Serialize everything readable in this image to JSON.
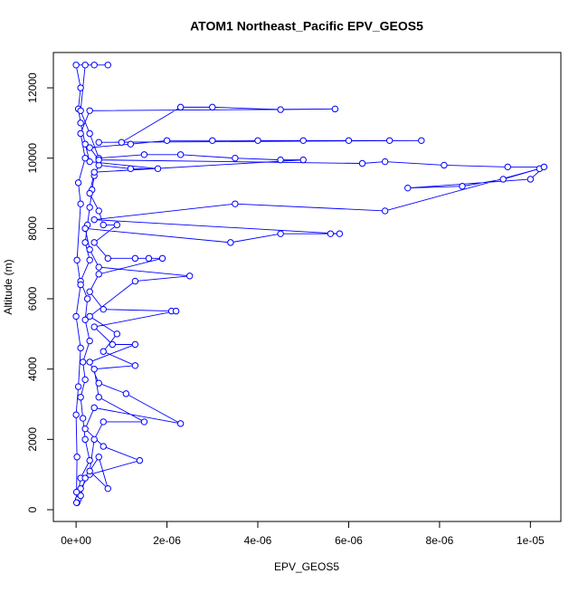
{
  "chart_data": {
    "type": "line",
    "title": "ATOM1 Northeast_Pacific EPV_GEOS5",
    "x_label": "EPV_GEOS5",
    "y_label": "Altitude (m)",
    "color": "#0000ff",
    "marker": "open-circle",
    "xlim": [
      -5e-07,
      1.067e-05
    ],
    "ylim": [
      -335,
      13005
    ],
    "xticks": [
      {
        "value": 0,
        "label": "0e+00"
      },
      {
        "value": 2e-06,
        "label": "2e-06"
      },
      {
        "value": 4e-06,
        "label": "4e-06"
      },
      {
        "value": 6e-06,
        "label": "6e-06"
      },
      {
        "value": 8e-06,
        "label": "8e-06"
      },
      {
        "value": 1e-05,
        "label": "1e-05"
      }
    ],
    "yticks": [
      0,
      2000,
      4000,
      6000,
      8000,
      10000,
      12000
    ],
    "x": [
      2e-08,
      5e-08,
      1e-07,
      3e-07,
      2e-07,
      1.5e-07,
      1e-07,
      2e-07,
      1.5e-07,
      3e-07,
      2e-07,
      2.5e-07,
      1e-07,
      3e-07,
      2e-07,
      2.5e-07,
      3e-07,
      3.5e-07,
      4e-07,
      5e-07,
      1.2e-06,
      1.8e-06,
      3e-07,
      2e-07,
      1e-07,
      5e-08,
      1e-07,
      0,
      4e-07,
      7e-07,
      2e-07,
      1e-07,
      3e-07,
      5e-07,
      1.5e-06,
      2.3e-06,
      3.5e-06,
      4.5e-06,
      5e-06,
      4e-07,
      3e-07,
      5e-07,
      6e-07,
      9e-07,
      4e-07,
      7e-07,
      1.3e-06,
      1.6e-06,
      1.9e-06,
      5e-07,
      3e-07,
      6e-07,
      2.1e-06,
      2.2e-06,
      4e-07,
      8e-07,
      1.3e-06,
      3e-07,
      5e-07,
      1.1e-06,
      2.3e-06,
      4e-07,
      2e-07,
      6e-07,
      1.4e-06,
      3e-07,
      1e-07,
      5e-08,
      2e-08,
      1e-07,
      2e-07,
      5e-07,
      7e-07,
      3e-07,
      4e-07,
      6e-07,
      1.5e-06,
      5e-07,
      4e-07,
      1.3e-06,
      6e-07,
      9e-07,
      3e-07,
      1.3e-06,
      2.5e-06,
      5e-07,
      3e-07,
      2e-07,
      3.4e-06,
      4.5e-06,
      5.6e-06,
      5.8e-06,
      4e-07,
      3.5e-06,
      6.8e-06,
      1.02e-05,
      9.4e-06,
      8.5e-06,
      7.3e-06,
      1e-05,
      1.03e-05,
      9.5e-06,
      8.1e-06,
      6.8e-06,
      6.3e-06,
      5e-07,
      3e-07,
      1.2e-06,
      2e-06,
      3e-06,
      4e-06,
      5e-06,
      6e-06,
      6.9e-06,
      7.6e-06,
      5e-07,
      1e-06,
      2.3e-06,
      3e-06,
      4.5e-06,
      5.7e-06,
      3e-07,
      1e-07,
      2e-07,
      5e-08,
      1e-07,
      2e-08,
      1e-07,
      0,
      1e-07,
      5e-08,
      0,
      2e-08,
      1e-08,
      1e-08
    ],
    "values": [
      200,
      500,
      900,
      1400,
      2000,
      2600,
      3200,
      3700,
      4200,
      4800,
      5400,
      6000,
      6500,
      7100,
      7600,
      8100,
      8600,
      9100,
      9500,
      9800,
      9700,
      9700,
      9900,
      10400,
      11000,
      11400,
      12000,
      12650,
      12650,
      12650,
      12650,
      11350,
      10700,
      10000,
      10100,
      10100,
      10000,
      9950,
      9950,
      9600,
      9000,
      8500,
      8100,
      8100,
      7600,
      7150,
      7150,
      7150,
      7150,
      6700,
      6200,
      5700,
      5650,
      5650,
      5200,
      4700,
      4700,
      4200,
      3600,
      3300,
      2450,
      2900,
      2300,
      1800,
      1400,
      1000,
      600,
      300,
      200,
      400,
      900,
      1500,
      600,
      1100,
      2000,
      2500,
      2500,
      3200,
      4000,
      4100,
      4500,
      5000,
      5500,
      6500,
      6650,
      6900,
      7400,
      8000,
      7600,
      7850,
      7850,
      7850,
      8250,
      8700,
      8500,
      9700,
      9400,
      9200,
      9150,
      9400,
      9750,
      9750,
      9800,
      9900,
      9850,
      9950,
      10300,
      10400,
      10500,
      10500,
      10500,
      10500,
      10500,
      10500,
      10500,
      10450,
      10450,
      11450,
      11450,
      11380,
      11400,
      11350,
      10700,
      10000,
      9300,
      8700,
      7100,
      6400,
      5500,
      4600,
      3500,
      2700,
      1500,
      500,
      200
    ]
  }
}
